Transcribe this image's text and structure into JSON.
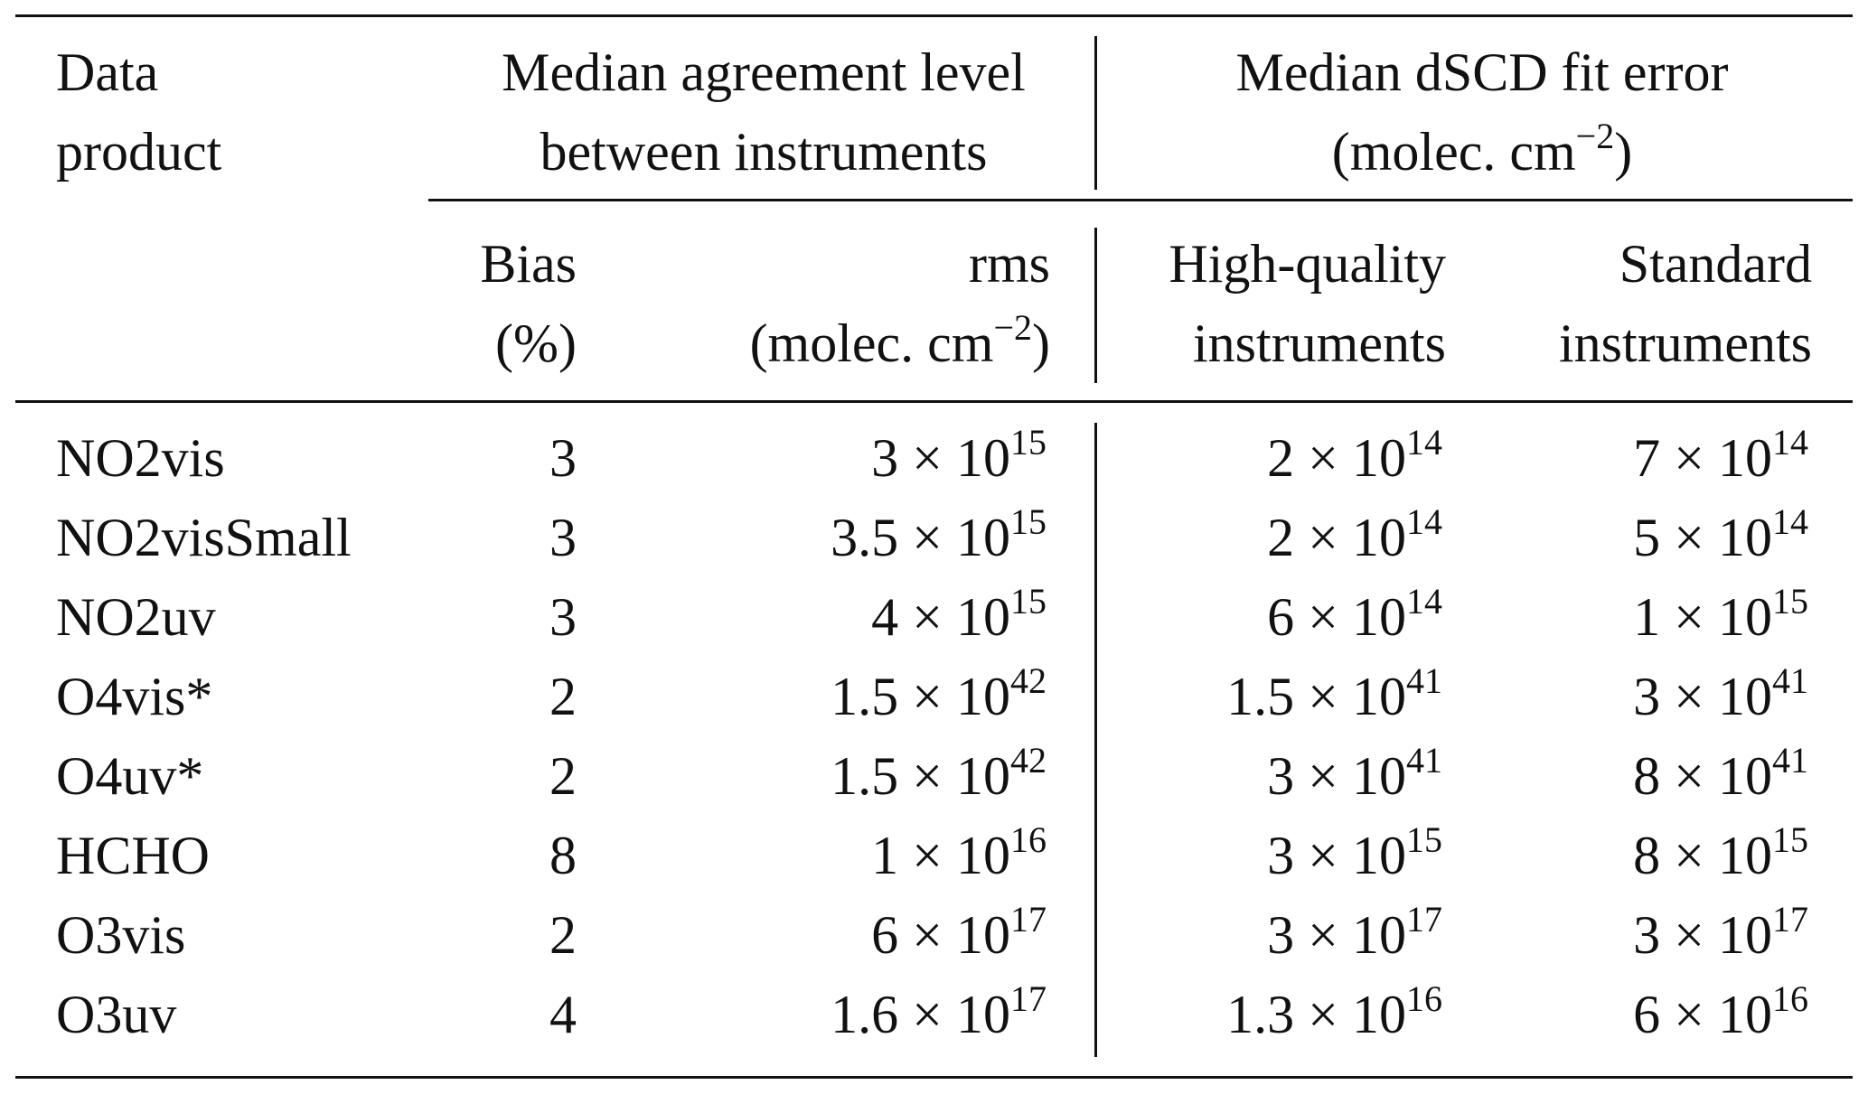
{
  "header": {
    "data_product": [
      "Data",
      "product"
    ],
    "agreement": [
      "Median agreement level",
      "between instruments"
    ],
    "fit_error": [
      "Median dSCD fit error",
      "(molec. cm",
      "−2",
      ")"
    ],
    "bias": [
      "Bias",
      "(%)"
    ],
    "rms": [
      "rms",
      "(molec. cm",
      "−2",
      ")"
    ],
    "high_quality": [
      "High-quality",
      "instruments"
    ],
    "standard": [
      "Standard",
      "instruments"
    ]
  },
  "rows": [
    {
      "name": "NO2vis",
      "bias": "3",
      "rms": [
        "3 × 10",
        "15"
      ],
      "hq": [
        "2 × 10",
        "14"
      ],
      "std": [
        "7 × 10",
        "14"
      ]
    },
    {
      "name": "NO2visSmall",
      "bias": "3",
      "rms": [
        "3.5 × 10",
        "15"
      ],
      "hq": [
        "2 × 10",
        "14"
      ],
      "std": [
        "5 × 10",
        "14"
      ]
    },
    {
      "name": "NO2uv",
      "bias": "3",
      "rms": [
        "4 × 10",
        "15"
      ],
      "hq": [
        "6 × 10",
        "14"
      ],
      "std": [
        "1 × 10",
        "15"
      ]
    },
    {
      "name": "O4vis*",
      "bias": "2",
      "rms": [
        "1.5 × 10",
        "42"
      ],
      "hq": [
        "1.5 × 10",
        "41"
      ],
      "std": [
        "3 × 10",
        "41"
      ]
    },
    {
      "name": "O4uv*",
      "bias": "2",
      "rms": [
        "1.5 × 10",
        "42"
      ],
      "hq": [
        "3 × 10",
        "41"
      ],
      "std": [
        "8 × 10",
        "41"
      ]
    },
    {
      "name": "HCHO",
      "bias": "8",
      "rms": [
        "1 × 10",
        "16"
      ],
      "hq": [
        "3 × 10",
        "15"
      ],
      "std": [
        "8 × 10",
        "15"
      ]
    },
    {
      "name": "O3vis",
      "bias": "2",
      "rms": [
        "6 × 10",
        "17"
      ],
      "hq": [
        "3 × 10",
        "17"
      ],
      "std": [
        "3 × 10",
        "17"
      ]
    },
    {
      "name": "O3uv",
      "bias": "4",
      "rms": [
        "1.6 × 10",
        "17"
      ],
      "hq": [
        "1.3 × 10",
        "16"
      ],
      "std": [
        "6 × 10",
        "16"
      ]
    }
  ]
}
